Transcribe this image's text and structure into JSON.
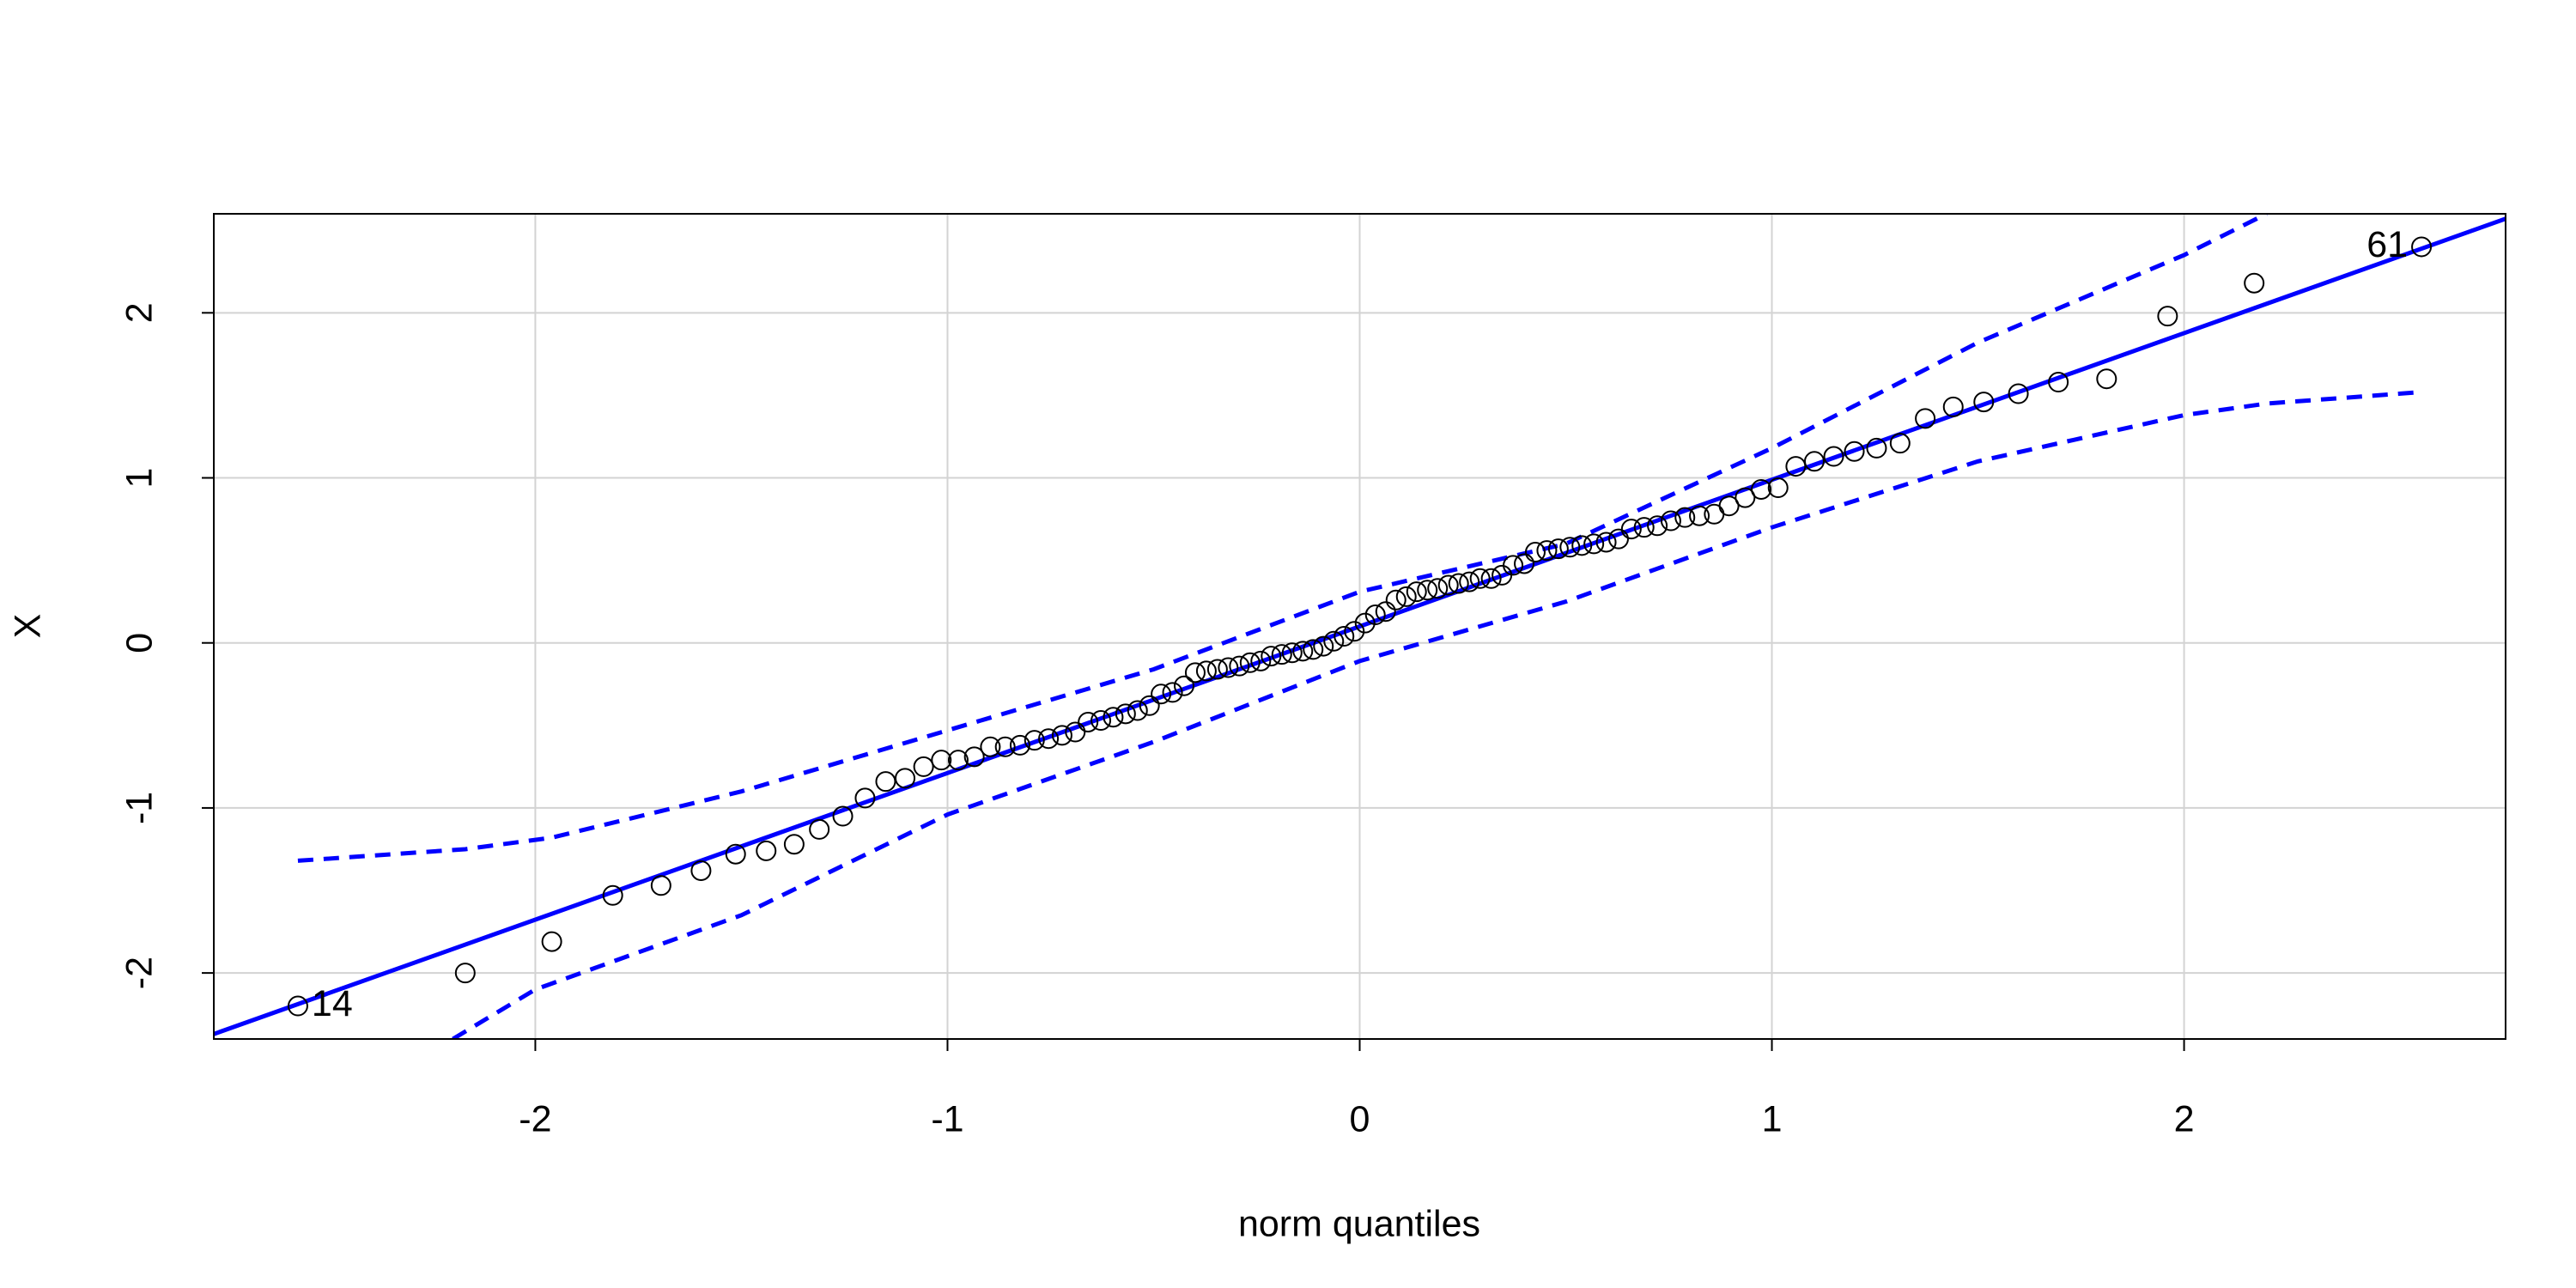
{
  "chart_data": {
    "type": "scatter",
    "xlabel": "norm quantiles",
    "ylabel": "X",
    "xlim": [
      -2.78,
      2.78
    ],
    "ylim": [
      -2.4,
      2.6
    ],
    "xticks": [
      -2,
      -1,
      0,
      1,
      2
    ],
    "yticks": [
      -2,
      -1,
      0,
      1,
      2
    ],
    "grid": true,
    "points": {
      "color": "#000000",
      "x": [
        -2.576,
        -2.17,
        -1.96,
        -1.812,
        -1.695,
        -1.598,
        -1.514,
        -1.44,
        -1.372,
        -1.311,
        -1.254,
        -1.2,
        -1.15,
        -1.103,
        -1.058,
        -1.015,
        -0.974,
        -0.935,
        -0.896,
        -0.86,
        -0.824,
        -0.789,
        -0.755,
        -0.722,
        -0.69,
        -0.659,
        -0.628,
        -0.598,
        -0.568,
        -0.539,
        -0.51,
        -0.482,
        -0.454,
        -0.426,
        -0.399,
        -0.372,
        -0.345,
        -0.319,
        -0.292,
        -0.266,
        -0.24,
        -0.215,
        -0.189,
        -0.164,
        -0.138,
        -0.113,
        -0.088,
        -0.063,
        -0.038,
        -0.013,
        0.013,
        0.038,
        0.063,
        0.088,
        0.113,
        0.138,
        0.164,
        0.189,
        0.215,
        0.24,
        0.266,
        0.292,
        0.319,
        0.345,
        0.372,
        0.399,
        0.426,
        0.454,
        0.482,
        0.51,
        0.539,
        0.568,
        0.598,
        0.628,
        0.659,
        0.69,
        0.722,
        0.755,
        0.789,
        0.824,
        0.86,
        0.896,
        0.935,
        0.974,
        1.015,
        1.058,
        1.103,
        1.15,
        1.2,
        1.254,
        1.311,
        1.372,
        1.44,
        1.514,
        1.598,
        1.695,
        1.812,
        1.96,
        2.17,
        2.576
      ],
      "values": [
        -2.2,
        -2.0,
        -1.81,
        -1.53,
        -1.47,
        -1.38,
        -1.28,
        -1.26,
        -1.22,
        -1.13,
        -1.05,
        -0.94,
        -0.84,
        -0.82,
        -0.75,
        -0.71,
        -0.71,
        -0.69,
        -0.63,
        -0.63,
        -0.62,
        -0.59,
        -0.58,
        -0.56,
        -0.54,
        -0.48,
        -0.47,
        -0.45,
        -0.43,
        -0.41,
        -0.38,
        -0.31,
        -0.3,
        -0.26,
        -0.18,
        -0.17,
        -0.16,
        -0.15,
        -0.14,
        -0.12,
        -0.11,
        -0.08,
        -0.07,
        -0.06,
        -0.05,
        -0.04,
        -0.02,
        0.01,
        0.04,
        0.07,
        0.12,
        0.17,
        0.19,
        0.26,
        0.28,
        0.31,
        0.32,
        0.33,
        0.35,
        0.36,
        0.37,
        0.39,
        0.39,
        0.41,
        0.47,
        0.48,
        0.55,
        0.56,
        0.57,
        0.58,
        0.59,
        0.6,
        0.61,
        0.63,
        0.69,
        0.7,
        0.71,
        0.74,
        0.76,
        0.77,
        0.78,
        0.83,
        0.88,
        0.93,
        0.94,
        1.07,
        1.1,
        1.13,
        1.16,
        1.18,
        1.21,
        1.36,
        1.43,
        1.46,
        1.51,
        1.58,
        1.6,
        1.98,
        2.18,
        2.4
      ]
    },
    "fit_line": {
      "color": "#0000ff",
      "x": [
        -2.78,
        2.78
      ],
      "values": [
        -2.37,
        2.57
      ]
    },
    "envelope": {
      "color": "#0000ff",
      "upper": {
        "x": [
          -2.576,
          -2.17,
          -1.96,
          -1.5,
          -1.0,
          -0.5,
          0,
          0.5,
          1.0,
          1.5,
          2.0,
          2.2
        ],
        "values": [
          -1.32,
          -1.25,
          -1.18,
          -0.9,
          -0.53,
          -0.16,
          0.31,
          0.6,
          1.18,
          1.82,
          2.35,
          2.6
        ]
      },
      "lower": {
        "x": [
          -2.2,
          -2.0,
          -1.5,
          -1.0,
          -0.5,
          0,
          0.5,
          1.0,
          1.5,
          2.0,
          2.2,
          2.576
        ],
        "values": [
          -2.4,
          -2.1,
          -1.65,
          -1.04,
          -0.6,
          -0.11,
          0.25,
          0.7,
          1.1,
          1.38,
          1.45,
          1.52
        ]
      }
    },
    "annotations": [
      {
        "text": "14",
        "x": -2.576,
        "y": -2.2
      },
      {
        "text": "61",
        "x": 2.576,
        "y": 2.4
      }
    ]
  }
}
